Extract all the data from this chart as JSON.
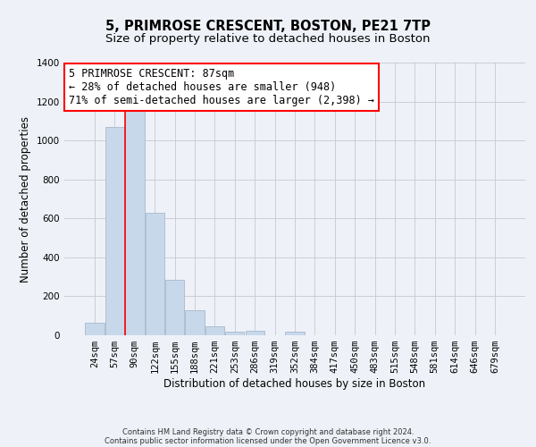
{
  "title": "5, PRIMROSE CRESCENT, BOSTON, PE21 7TP",
  "subtitle": "Size of property relative to detached houses in Boston",
  "xlabel": "Distribution of detached houses by size in Boston",
  "ylabel": "Number of detached properties",
  "footer_line1": "Contains HM Land Registry data © Crown copyright and database right 2024.",
  "footer_line2": "Contains public sector information licensed under the Open Government Licence v3.0.",
  "bar_labels": [
    "24sqm",
    "57sqm",
    "90sqm",
    "122sqm",
    "155sqm",
    "188sqm",
    "221sqm",
    "253sqm",
    "286sqm",
    "319sqm",
    "352sqm",
    "384sqm",
    "417sqm",
    "450sqm",
    "483sqm",
    "515sqm",
    "548sqm",
    "581sqm",
    "614sqm",
    "646sqm",
    "679sqm"
  ],
  "bar_values": [
    65,
    1070,
    1160,
    630,
    285,
    130,
    45,
    20,
    25,
    0,
    20,
    0,
    0,
    0,
    0,
    0,
    0,
    0,
    0,
    0,
    0
  ],
  "bar_color": "#c8d8eb",
  "bar_edge_color": "#a8b8cc",
  "ylim": [
    0,
    1400
  ],
  "yticks": [
    0,
    200,
    400,
    600,
    800,
    1000,
    1200,
    1400
  ],
  "redline_bar_index": 2,
  "ann_line1": "5 PRIMROSE CRESCENT: 87sqm",
  "ann_line2": "← 28% of detached houses are smaller (948)",
  "ann_line3": "71% of semi-detached houses are larger (2,398) →",
  "ann_box_facecolor": "white",
  "ann_box_edgecolor": "red",
  "ann_fontsize": 8.5,
  "background_color": "#eef2f8",
  "grid_color": "#c8c8d0",
  "title_fontsize": 10.5,
  "subtitle_fontsize": 9.5,
  "axis_label_fontsize": 8.5,
  "tick_fontsize": 7.5,
  "footer_fontsize": 6.0
}
